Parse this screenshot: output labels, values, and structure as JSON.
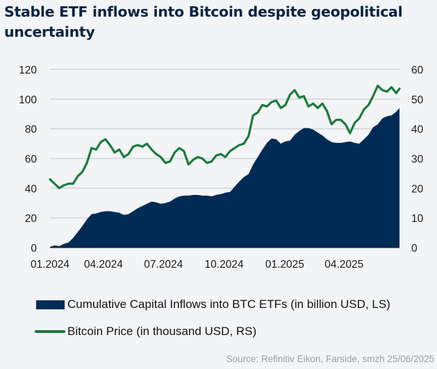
{
  "chart_data": {
    "type": "area+line",
    "title": "Stable ETF inflows into Bitcoin despite geopolitical uncertainty",
    "xlabel": "",
    "ylabel_left": "",
    "ylabel_right": "",
    "x_ticks": [
      "01.2024",
      "04.2024",
      "07.2024",
      "10.2024",
      "01.2025",
      "04.2025"
    ],
    "x_range": [
      "2024-01-11",
      "2025-06-24"
    ],
    "y_left": {
      "range": [
        0,
        120
      ],
      "ticks": [
        0,
        20,
        40,
        60,
        80,
        100,
        120
      ]
    },
    "y_right": {
      "range": [
        0,
        60
      ],
      "ticks": [
        0,
        10,
        20,
        30,
        40,
        50,
        60
      ]
    },
    "grid": true,
    "legend_position": "bottom",
    "x": [
      "2024-01-11",
      "2024-01-18",
      "2024-01-25",
      "2024-02-01",
      "2024-02-08",
      "2024-02-15",
      "2024-02-22",
      "2024-02-29",
      "2024-03-07",
      "2024-03-14",
      "2024-03-21",
      "2024-03-28",
      "2024-04-04",
      "2024-04-11",
      "2024-04-18",
      "2024-04-25",
      "2024-05-02",
      "2024-05-09",
      "2024-05-16",
      "2024-05-23",
      "2024-05-30",
      "2024-06-06",
      "2024-06-13",
      "2024-06-20",
      "2024-06-27",
      "2024-07-04",
      "2024-07-11",
      "2024-07-18",
      "2024-07-25",
      "2024-08-01",
      "2024-08-08",
      "2024-08-15",
      "2024-08-22",
      "2024-08-29",
      "2024-09-05",
      "2024-09-12",
      "2024-09-19",
      "2024-09-26",
      "2024-10-03",
      "2024-10-10",
      "2024-10-17",
      "2024-10-24",
      "2024-10-31",
      "2024-11-07",
      "2024-11-14",
      "2024-11-21",
      "2024-11-28",
      "2024-12-05",
      "2024-12-12",
      "2024-12-19",
      "2024-12-26",
      "2025-01-02",
      "2025-01-09",
      "2025-01-16",
      "2025-01-23",
      "2025-01-30",
      "2025-02-06",
      "2025-02-13",
      "2025-02-20",
      "2025-02-27",
      "2025-03-06",
      "2025-03-13",
      "2025-03-20",
      "2025-03-27",
      "2025-04-03",
      "2025-04-10",
      "2025-04-17",
      "2025-04-24",
      "2025-05-01",
      "2025-05-08",
      "2025-05-15",
      "2025-05-22",
      "2025-05-29",
      "2025-06-05",
      "2025-06-12",
      "2025-06-19",
      "2025-06-24"
    ],
    "series": [
      {
        "name": "Cumulative Capital Inflows into BTC ETFs (in billion USD, LS)",
        "type": "area",
        "axis": "left",
        "color": "#002b55",
        "values": [
          0.5,
          1.5,
          1.0,
          2.5,
          3.5,
          6.5,
          10.5,
          14.5,
          19.0,
          22.5,
          23.0,
          24.0,
          24.5,
          24.5,
          24.0,
          23.5,
          22.0,
          22.5,
          24.5,
          26.5,
          28.0,
          29.5,
          31.0,
          30.5,
          29.5,
          30.0,
          31.0,
          33.0,
          34.5,
          35.0,
          35.0,
          35.5,
          35.5,
          35.0,
          35.0,
          34.5,
          35.5,
          36.0,
          37.0,
          37.5,
          41.0,
          44.5,
          47.5,
          49.5,
          56.0,
          61.0,
          66.0,
          70.5,
          73.5,
          73.0,
          70.0,
          71.5,
          72.0,
          76.0,
          78.5,
          80.5,
          80.5,
          79.5,
          77.5,
          75.5,
          73.0,
          71.0,
          70.5,
          70.5,
          71.0,
          71.5,
          70.5,
          70.0,
          73.0,
          76.0,
          81.0,
          83.0,
          87.0,
          88.5,
          89.0,
          91.5,
          94.0
        ]
      },
      {
        "name": "Bitcoin Price (in thousand USD, RS)",
        "type": "line",
        "axis": "right",
        "color": "#1a7a3c",
        "values": [
          23.0,
          21.5,
          20.0,
          21.0,
          21.5,
          21.5,
          24.0,
          25.5,
          28.5,
          33.5,
          33.0,
          35.5,
          36.5,
          34.5,
          32.0,
          33.0,
          30.5,
          31.5,
          34.0,
          34.5,
          34.0,
          35.0,
          33.0,
          31.5,
          30.5,
          28.5,
          29.0,
          32.0,
          33.5,
          32.5,
          28.0,
          29.5,
          30.5,
          30.0,
          28.5,
          29.0,
          31.0,
          31.5,
          30.5,
          32.5,
          33.5,
          34.5,
          35.0,
          37.5,
          44.5,
          45.5,
          48.0,
          47.5,
          49.0,
          49.5,
          47.0,
          48.0,
          51.5,
          53.0,
          50.5,
          51.0,
          47.5,
          48.5,
          47.0,
          48.5,
          46.0,
          41.5,
          43.0,
          43.0,
          41.5,
          38.5,
          42.0,
          43.5,
          46.5,
          48.0,
          51.0,
          54.5,
          53.0,
          52.5,
          54.0,
          52.0,
          53.5
        ]
      }
    ]
  },
  "legend": {
    "area_label": "Cumulative Capital Inflows into BTC ETFs (in billion USD, LS)",
    "line_label": "Bitcoin Price (in thousand USD, RS)"
  },
  "source": "Source: Refinitiv Eikon, Farside, smzh 25/06/2025",
  "colors": {
    "area": "#002b55",
    "line": "#1a7a3c",
    "grid": "#d3d5d8",
    "title": "#0b2542",
    "source": "#9a9ea3"
  }
}
